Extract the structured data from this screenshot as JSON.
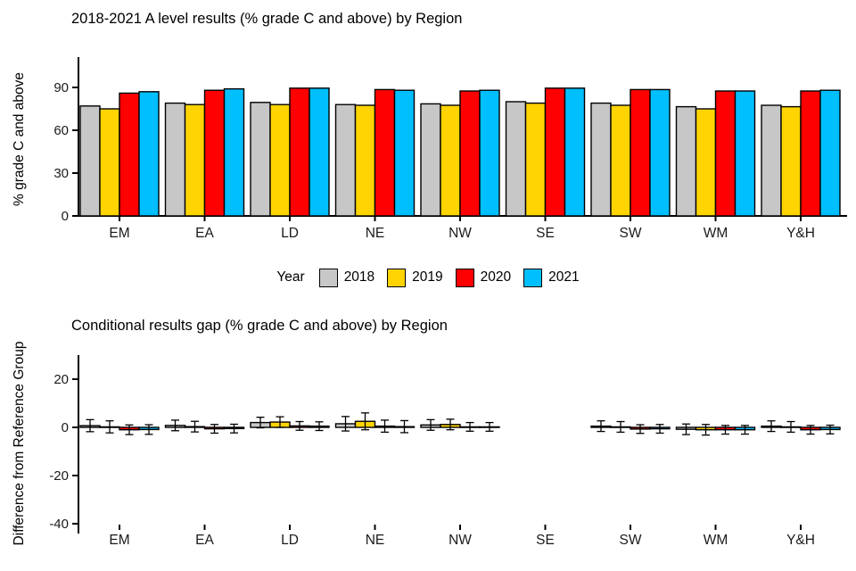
{
  "chart_data": [
    {
      "type": "bar",
      "title": "2018-2021 A level results (% grade C and above) by Region",
      "ylabel": "% grade C and above",
      "xlabel": "",
      "categories": [
        "EM",
        "EA",
        "LD",
        "NE",
        "NW",
        "SE",
        "SW",
        "WM",
        "Y&H"
      ],
      "yticks": [
        0,
        30,
        60,
        90
      ],
      "ylim": [
        0,
        95
      ],
      "grid": false,
      "legend_title": "Year",
      "legend_position": "bottom",
      "series": [
        {
          "name": "2018",
          "color": "#C7C7C7",
          "values": [
            77,
            79,
            79.5,
            78,
            78.5,
            80,
            79,
            76.5,
            77.5
          ]
        },
        {
          "name": "2019",
          "color": "#FFD400",
          "values": [
            75,
            78,
            78,
            77.5,
            77.5,
            79,
            77.5,
            75,
            76.5
          ]
        },
        {
          "name": "2020",
          "color": "#FF0000",
          "values": [
            86,
            88,
            89.5,
            88.5,
            87.5,
            89.5,
            88.5,
            87.5,
            87.5
          ]
        },
        {
          "name": "2021",
          "color": "#00BFFF",
          "values": [
            87,
            89,
            89.5,
            88,
            88,
            89.5,
            88.5,
            87.5,
            88
          ]
        }
      ]
    },
    {
      "type": "bar",
      "title": "Conditional results gap (% grade C and above) by Region",
      "ylabel": "Difference from Reference Group",
      "xlabel": "",
      "categories": [
        "EM",
        "EA",
        "LD",
        "NE",
        "NW",
        "SE",
        "SW",
        "WM",
        "Y&H"
      ],
      "yticks": [
        -40,
        -20,
        0,
        20
      ],
      "ylim": [
        -45,
        30
      ],
      "grid": false,
      "series": [
        {
          "name": "2018",
          "color": "#C7C7C7",
          "values": [
            0.7,
            0.8,
            2.0,
            1.5,
            1.0,
            null,
            0.5,
            -0.8,
            0.5
          ],
          "errors": [
            2.5,
            2.2,
            2.2,
            3.0,
            2.2,
            null,
            2.2,
            2.2,
            2.2
          ]
        },
        {
          "name": "2019",
          "color": "#FFD400",
          "values": [
            0.2,
            0.3,
            2.2,
            2.5,
            1.2,
            null,
            0.2,
            -1.0,
            0.2
          ],
          "errors": [
            2.5,
            2.2,
            2.2,
            3.5,
            2.2,
            null,
            2.2,
            2.2,
            2.2
          ]
        },
        {
          "name": "2020",
          "color": "#FF0000",
          "values": [
            -1.0,
            -0.6,
            0.6,
            0.5,
            0.2,
            null,
            -0.7,
            -1.0,
            -1.0
          ],
          "errors": [
            2.0,
            1.8,
            1.8,
            2.5,
            1.8,
            null,
            1.8,
            1.8,
            1.8
          ]
        },
        {
          "name": "2021",
          "color": "#00BFFF",
          "values": [
            -0.9,
            -0.5,
            0.5,
            0.3,
            0.2,
            null,
            -0.6,
            -1.0,
            -0.9
          ],
          "errors": [
            2.0,
            1.8,
            1.8,
            2.5,
            1.8,
            null,
            1.8,
            1.8,
            1.8
          ]
        }
      ]
    }
  ]
}
